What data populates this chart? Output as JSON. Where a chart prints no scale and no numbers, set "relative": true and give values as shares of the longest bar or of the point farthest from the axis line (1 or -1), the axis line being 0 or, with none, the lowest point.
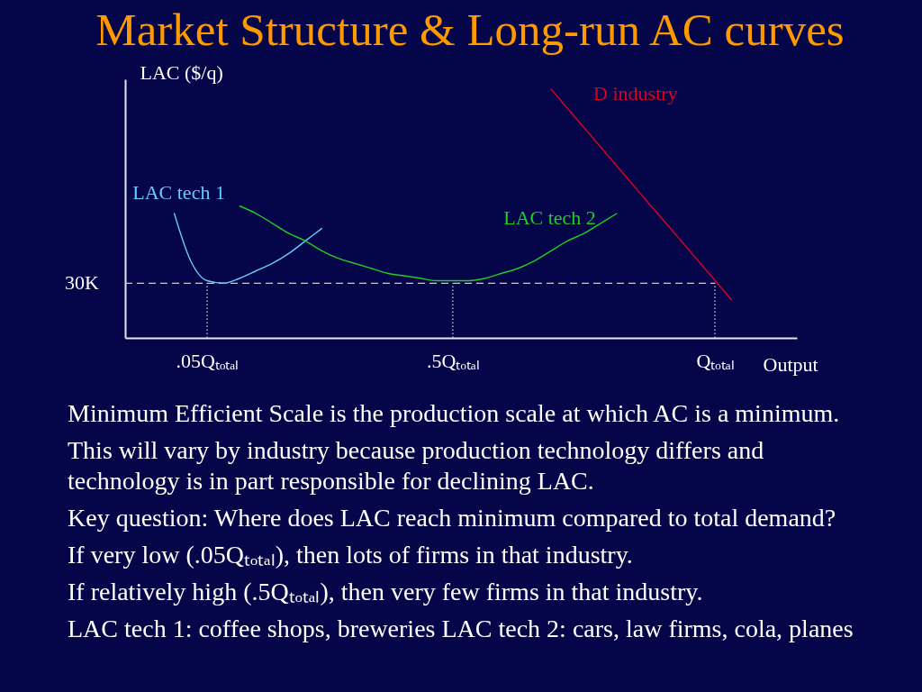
{
  "chart_data": {
    "type": "line",
    "title": "Market Structure & Long-run AC curves",
    "xlabel": "Output",
    "ylabel": "LAC ($/q)",
    "relative": true,
    "categories": [
      null,
      null,
      null,
      null,
      null,
      ".05Qₜₒₜₐₗ",
      null,
      null,
      null,
      null,
      null,
      null,
      null,
      null,
      null,
      null,
      null,
      null,
      null,
      null,
      ".5Qₜₒₜₐₗ",
      null,
      null,
      null,
      null,
      null,
      null,
      null,
      null,
      null,
      null,
      null,
      null,
      null,
      null,
      null,
      "Qₜₒₜₐₗ",
      null,
      null,
      null,
      null,
      null
    ],
    "series": [
      {
        "name": "LAC tech 1",
        "color": "#66ccff",
        "values": [
          null,
          null,
          null,
          0.5,
          0.31,
          0.23,
          0.22,
          0.24,
          0.27,
          0.3,
          0.34,
          0.39,
          0.44,
          null,
          null,
          null,
          null,
          null,
          null,
          null,
          null,
          null,
          null,
          null,
          null,
          null,
          null,
          null,
          null,
          null,
          null,
          null,
          null,
          null,
          null,
          null,
          null,
          null,
          null,
          null,
          null,
          null
        ]
      },
      {
        "name": "LAC tech 2",
        "color": "#22cc22",
        "values": [
          null,
          null,
          null,
          null,
          null,
          null,
          null,
          0.53,
          0.5,
          0.46,
          0.42,
          0.39,
          0.35,
          0.32,
          0.3,
          0.28,
          0.26,
          0.25,
          0.24,
          0.23,
          0.23,
          0.23,
          0.24,
          0.26,
          0.28,
          0.31,
          0.35,
          0.39,
          0.42,
          0.46,
          0.5,
          null,
          null,
          null,
          null,
          null,
          null,
          null,
          null,
          null,
          null,
          null
        ]
      },
      {
        "name": "D industry",
        "color": "#dd0022",
        "values": [
          null,
          null,
          null,
          null,
          null,
          null,
          null,
          null,
          null,
          null,
          null,
          null,
          null,
          null,
          null,
          null,
          null,
          null,
          null,
          null,
          null,
          null,
          null,
          null,
          null,
          null,
          1.0,
          0.923,
          0.846,
          0.769,
          0.692,
          0.615,
          0.538,
          0.462,
          0.385,
          0.308,
          0.231,
          0.154,
          null,
          null,
          null,
          null
        ]
      }
    ],
    "ref_lines": [
      {
        "axis": "y",
        "value": 0.22,
        "label": "30K",
        "line_style": "dashed",
        "color": "#c8c8dc"
      },
      {
        "axis": "x",
        "value": ".05Qₜₒₜₐₗ",
        "line_style": "dotted",
        "color": "#c8c8dc"
      },
      {
        "axis": "x",
        "value": ".5Qₜₒₜₐₗ",
        "line_style": "dotted",
        "color": "#c8c8dc"
      },
      {
        "axis": "x",
        "value": "Qₜₒₜₐₗ",
        "line_style": "dotted",
        "color": "#c8c8dc"
      }
    ],
    "annotations": [
      "Minimum Efficient Scale is the production scale at which AC is a minimum.",
      "This will vary by industry because production technology differs and technology is in part responsible for declining LAC.",
      "Key question: Where does LAC reach minimum compared to total demand?",
      "If very low (.05Qₜₒₜₐₗ), then lots of firms in that industry.",
      "If relatively high (.5Qₜₒₜₐₗ), then very few firms in that industry.",
      "LAC tech 1: coffee shops, breweries LAC tech 2: cars, law firms, cola, planes"
    ]
  }
}
